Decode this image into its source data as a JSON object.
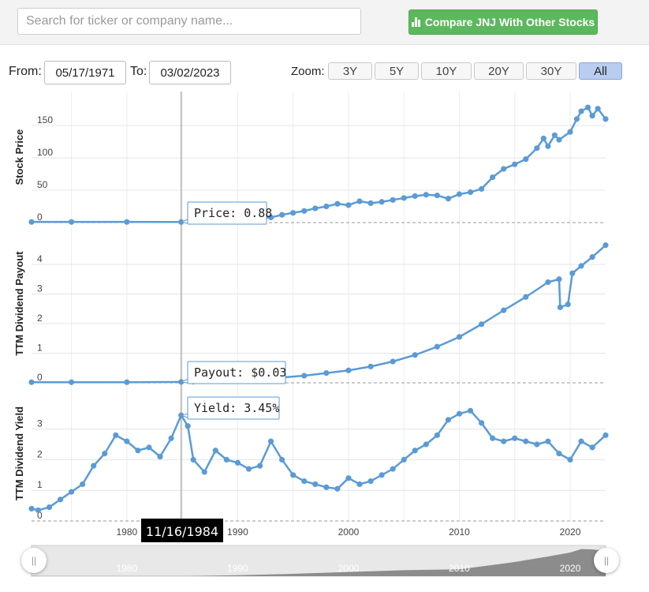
{
  "search": {
    "placeholder": "Search for ticker or company name..."
  },
  "compare_button": {
    "label": "Compare JNJ With Other Stocks"
  },
  "range": {
    "from_label": "From:",
    "from_value": "05/17/1971",
    "to_label": "To:",
    "to_value": "03/02/2023"
  },
  "zoom": {
    "label": "Zoom:",
    "options": [
      "3Y",
      "5Y",
      "10Y",
      "20Y",
      "30Y",
      "All"
    ],
    "active": "All"
  },
  "tooltip": {
    "date": "11/16/1984",
    "price": "Price: 0.88",
    "payout": "Payout: $0.03",
    "yield": "Yield: 3.45%"
  },
  "colors": {
    "series": "#5b9bd5",
    "accent_green": "#5cb85c",
    "active_zoom": "#b9cdf0"
  },
  "chart_data": [
    {
      "type": "line",
      "ylabel": "Stock Price",
      "yticks": [
        0,
        50,
        100,
        150
      ],
      "ylim": [
        0,
        200
      ],
      "xlim": [
        1971.4,
        2023.2
      ],
      "xticks": [
        1980,
        1990,
        2000,
        2010,
        2020
      ],
      "x": [
        1971.4,
        1975,
        1980,
        1984.9,
        1986,
        1988,
        1990,
        1991,
        1992,
        1993,
        1994,
        1995,
        1996,
        1997,
        1998,
        1999,
        2000,
        2001,
        2002,
        2003,
        2004,
        2005,
        2006,
        2007,
        2008,
        2009,
        2010,
        2011,
        2012,
        2013,
        2014,
        2015,
        2016,
        2017,
        2017.6,
        2018,
        2018.6,
        2019,
        2020,
        2020.6,
        2021,
        2021.6,
        2022,
        2022.5,
        2023.2
      ],
      "y": [
        1,
        1,
        1,
        0.88,
        3,
        5,
        6,
        6,
        7,
        8,
        12,
        15,
        18,
        22,
        25,
        29,
        27,
        33,
        30,
        32,
        35,
        38,
        41,
        43,
        42,
        37,
        44,
        47,
        52,
        70,
        83,
        90,
        98,
        115,
        130,
        118,
        135,
        128,
        140,
        160,
        172,
        178,
        165,
        176,
        160
      ]
    },
    {
      "type": "line",
      "ylabel": "TTM Dividend Payout",
      "yticks": [
        0,
        1,
        2,
        3,
        4
      ],
      "ylim": [
        0,
        4.5
      ],
      "xlim": [
        1971.4,
        2023.2
      ],
      "x": [
        1971.4,
        1975,
        1980,
        1984.9,
        1986,
        1988,
        1990,
        1992,
        1994,
        1996,
        1998,
        2000,
        2002,
        2004,
        2006,
        2008,
        2010,
        2012,
        2014,
        2016,
        2018,
        2019,
        2019.1,
        2019.8,
        2020.2,
        2021,
        2022,
        2023.2
      ],
      "y": [
        0.02,
        0.02,
        0.02,
        0.03,
        0.04,
        0.06,
        0.09,
        0.13,
        0.18,
        0.24,
        0.33,
        0.42,
        0.55,
        0.72,
        0.94,
        1.22,
        1.55,
        1.98,
        2.45,
        2.9,
        3.4,
        3.5,
        2.55,
        2.65,
        3.7,
        3.95,
        4.25,
        4.65
      ]
    },
    {
      "type": "line",
      "ylabel": "TTM Dividend Yield",
      "yticks": [
        0,
        1,
        2,
        3
      ],
      "ylim": [
        0,
        4
      ],
      "xlim": [
        1971.4,
        2023.2
      ],
      "x": [
        1971.4,
        1972,
        1973,
        1974,
        1975,
        1976,
        1977,
        1978,
        1979,
        1980,
        1981,
        1982,
        1983,
        1984,
        1984.9,
        1985.5,
        1986,
        1987,
        1988,
        1989,
        1990,
        1991,
        1992,
        1993,
        1994,
        1995,
        1996,
        1997,
        1998,
        1999,
        2000,
        2001,
        2002,
        2003,
        2004,
        2005,
        2006,
        2007,
        2008,
        2009,
        2010,
        2011,
        2012,
        2013,
        2014,
        2015,
        2016,
        2017,
        2018,
        2019,
        2020,
        2021,
        2022,
        2023.2
      ],
      "y": [
        0.4,
        0.35,
        0.45,
        0.7,
        0.95,
        1.2,
        1.8,
        2.2,
        2.8,
        2.6,
        2.3,
        2.4,
        2.1,
        2.7,
        3.45,
        3.1,
        2.0,
        1.6,
        2.3,
        2.0,
        1.9,
        1.7,
        1.8,
        2.6,
        2.0,
        1.5,
        1.3,
        1.2,
        1.1,
        1.05,
        1.4,
        1.2,
        1.3,
        1.5,
        1.7,
        2.0,
        2.3,
        2.5,
        2.8,
        3.3,
        3.5,
        3.6,
        3.2,
        2.7,
        2.6,
        2.7,
        2.6,
        2.5,
        2.6,
        2.2,
        2.0,
        2.6,
        2.4,
        2.8
      ]
    },
    {
      "type": "area",
      "ylim": [
        0,
        200
      ],
      "xlim": [
        1971.4,
        2023.2
      ],
      "xticks": [
        1980,
        1990,
        2000,
        2010,
        2020
      ],
      "x": [
        1971.4,
        1985,
        1990,
        1995,
        2000,
        2005,
        2010,
        2015,
        2018,
        2020,
        2021,
        2022,
        2023.2
      ],
      "y": [
        1,
        1,
        6,
        15,
        27,
        38,
        44,
        90,
        125,
        150,
        172,
        170,
        160
      ]
    }
  ]
}
